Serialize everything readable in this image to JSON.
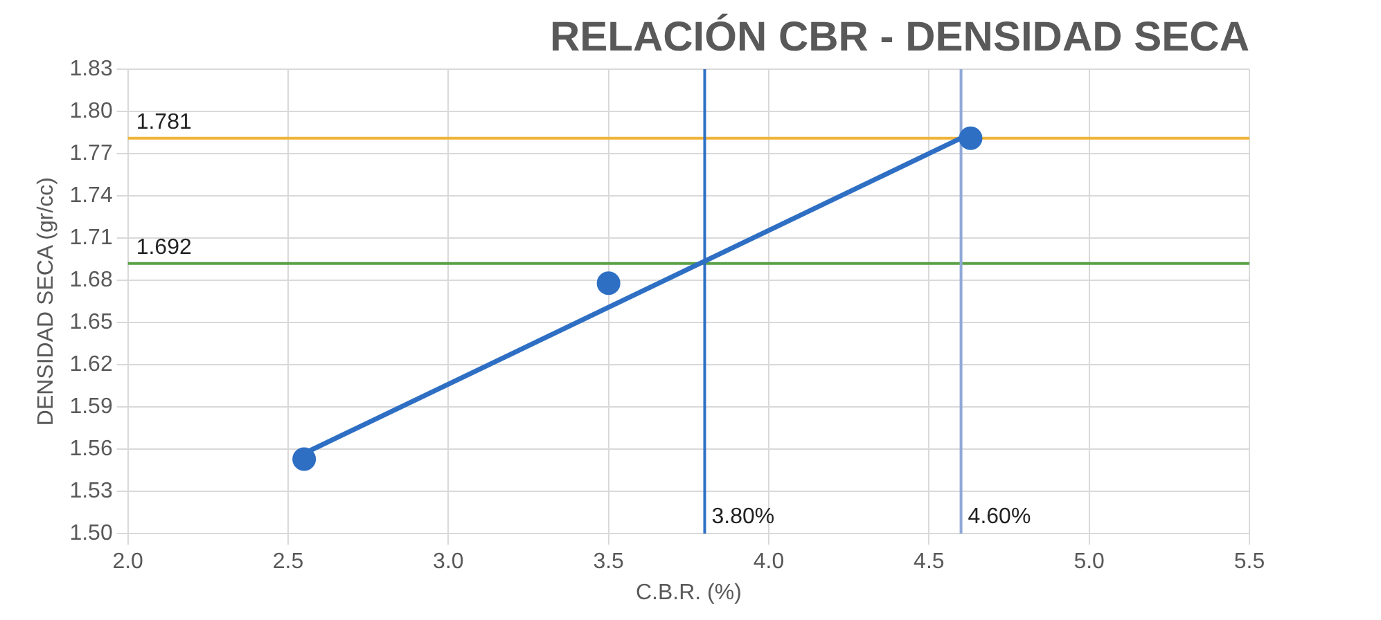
{
  "chart_data": {
    "type": "scatter",
    "title": "RELACIÓN CBR - DENSIDAD SECA",
    "xlabel": "C.B.R. (%)",
    "ylabel": "DENSIDAD SECA (gr/cc)",
    "series": [
      {
        "type": "scatter",
        "color": "#2e6fc4",
        "x": [
          2.55,
          3.5,
          4.63
        ],
        "values": [
          1.553,
          1.678,
          1.781
        ],
        "marker": "circle"
      },
      {
        "type": "line",
        "color": "#2e6fc4",
        "x": [
          2.55,
          4.6
        ],
        "values": [
          1.557,
          1.781
        ],
        "marker": "none"
      }
    ],
    "xlim": [
      2,
      5.5
    ],
    "xticks": [
      {
        "value": 2,
        "label": "2.0"
      },
      2.5,
      {
        "value": 3,
        "label": "3.0"
      },
      3.5,
      {
        "value": 4,
        "label": "4.0"
      },
      4.5,
      {
        "value": 5,
        "label": "5.0"
      },
      5.5
    ],
    "ylim": [
      1.5,
      1.83
    ],
    "yticks": [
      {
        "value": 1.5,
        "label": "1.50"
      },
      1.53,
      1.56,
      1.59,
      1.62,
      1.65,
      1.68,
      1.71,
      1.74,
      1.77,
      {
        "value": 1.8,
        "label": "1.80"
      },
      1.83
    ],
    "ref_lines": [
      {
        "axis": "y",
        "value": 1.781,
        "label": "1.781",
        "color": "#f0b43c"
      },
      {
        "axis": "y",
        "value": 1.692,
        "label": "1.692",
        "color": "#5aa046"
      },
      {
        "axis": "x",
        "value": 3.8,
        "label": "3.80%",
        "color": "#2e6fc4"
      },
      {
        "axis": "x",
        "value": 4.6,
        "label": "4.60%",
        "color": "#8fa9d8"
      }
    ],
    "grid": true,
    "legend": false
  }
}
